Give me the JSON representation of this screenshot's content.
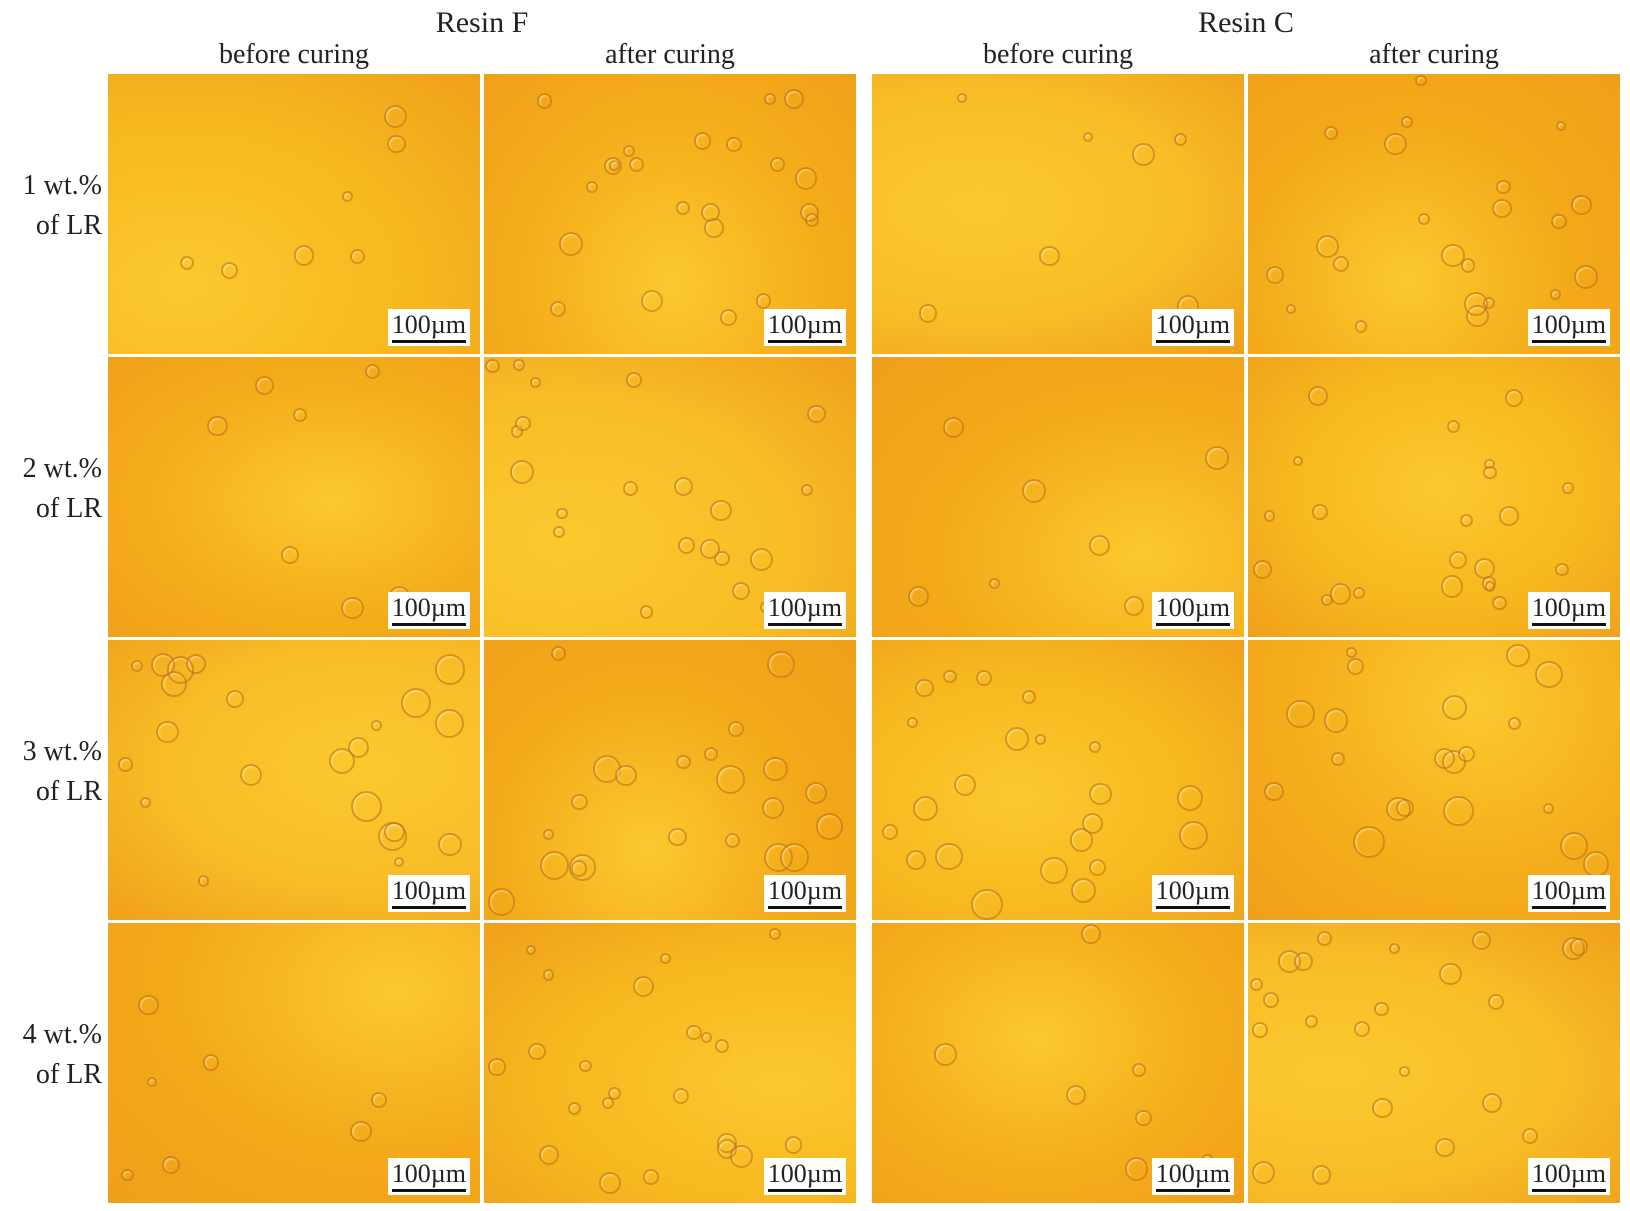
{
  "groups": [
    {
      "title": "Resin F",
      "columns": [
        "before curing",
        "after curing"
      ]
    },
    {
      "title": "Resin C",
      "columns": [
        "before curing",
        "after curing"
      ]
    }
  ],
  "rows": [
    {
      "label": [
        "1 wt.%",
        "of LR"
      ]
    },
    {
      "label": [
        "2 wt.%",
        "of LR"
      ]
    },
    {
      "label": [
        "3 wt.%",
        "of LR"
      ]
    },
    {
      "label": [
        "4 wt.%",
        "of LR"
      ]
    }
  ],
  "scale_bar": "100µm"
}
